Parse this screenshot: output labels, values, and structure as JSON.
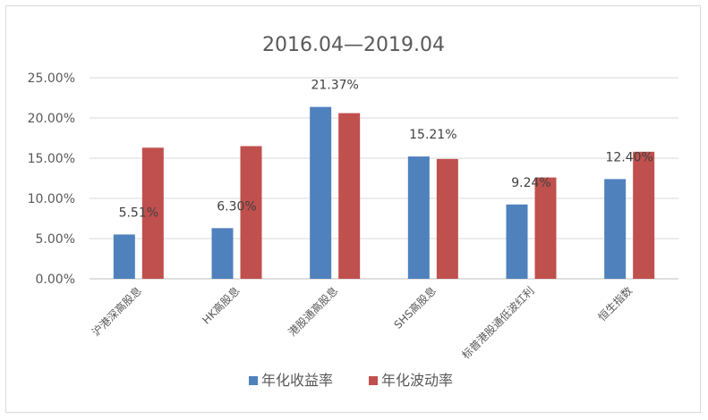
{
  "chart_data": {
    "type": "bar",
    "title": "2016.04—2019.04",
    "xlabel": "",
    "ylabel": "",
    "categories": [
      "沪港深高股息",
      "HK高股息",
      "港股通高股息",
      "SHS高股息",
      "标普港股通低波红利",
      "恒生指数"
    ],
    "series": [
      {
        "name": "年化收益率",
        "values": [
          5.51,
          6.3,
          21.37,
          15.21,
          9.24,
          12.4
        ],
        "color": "#4f81bd"
      },
      {
        "name": "年化波动率",
        "values": [
          16.3,
          16.5,
          20.6,
          14.9,
          12.6,
          15.8
        ],
        "color": "#c0504d"
      }
    ],
    "data_labels": [
      "5.51%",
      "6.30%",
      "21.37%",
      "15.21%",
      "9.24%",
      "12.40%"
    ],
    "y_ticks": [
      "0.00%",
      "5.00%",
      "10.00%",
      "15.00%",
      "20.00%",
      "25.00%"
    ],
    "ylim": [
      0,
      25
    ],
    "grid": true,
    "legend_position": "bottom"
  }
}
